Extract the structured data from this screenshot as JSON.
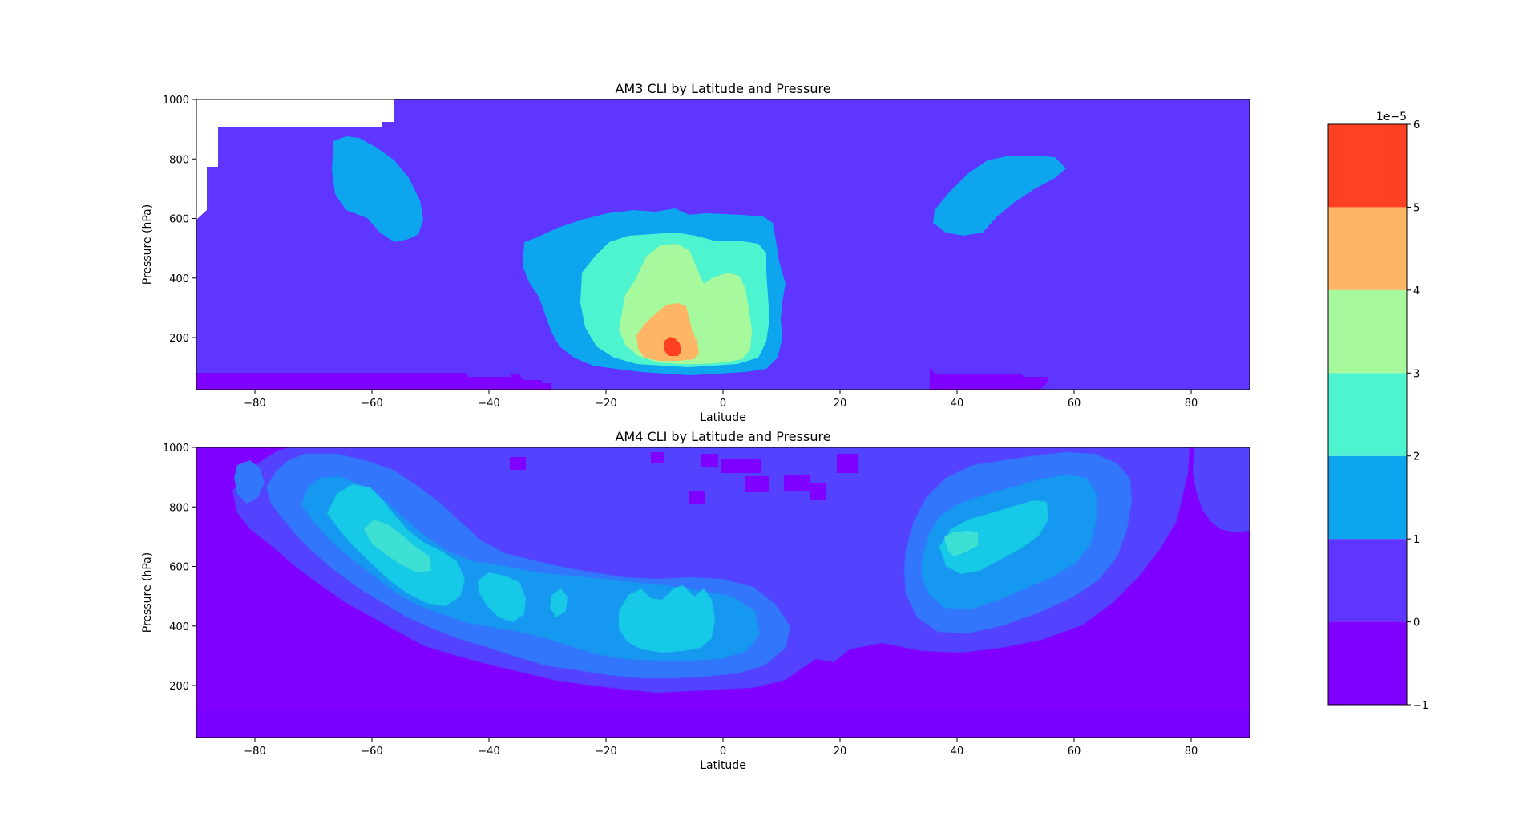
{
  "chart_data": [
    {
      "type": "heatmap",
      "subtype": "filled-contour",
      "title": "AM3 CLI by Latitude and Pressure",
      "xlabel": "Latitude",
      "ylabel": "Pressure (hPa)",
      "xlim": [
        -90,
        90
      ],
      "ylim": [
        25,
        1000
      ],
      "xticks": [
        -80,
        -60,
        -40,
        -20,
        0,
        20,
        40,
        60,
        80
      ],
      "xtick_labels": [
        "−80",
        "−60",
        "−40",
        "−20",
        "0",
        "20",
        "40",
        "60",
        "80"
      ],
      "yticks": [
        200,
        400,
        600,
        800,
        1000
      ],
      "ytick_labels": [
        "200",
        "400",
        "600",
        "800",
        "1000"
      ],
      "background_level": 0,
      "features": [
        {
          "desc": "low-cli band near top of atmosphere (south)",
          "level": -1,
          "lat": [
            -90,
            -30
          ],
          "p": [
            25,
            80
          ]
        },
        {
          "desc": "low-cli band near top of atmosphere (north)",
          "level": -1,
          "lat": [
            37,
            57
          ],
          "p": [
            25,
            80
          ]
        },
        {
          "desc": "southern mid-latitude maximum",
          "level": 1,
          "lat_center": -57,
          "p_center": 730
        },
        {
          "desc": "northern mid-latitude maximum",
          "level": 1,
          "lat_center": 47,
          "p_center": 690
        },
        {
          "desc": "tropical maximum",
          "level": 1,
          "lat": [
            -34,
            11
          ],
          "p": [
            80,
            620
          ]
        },
        {
          "desc": "tropical core",
          "level": 2,
          "lat": [
            -24,
            9
          ],
          "p": [
            90,
            500
          ]
        },
        {
          "desc": "tropical core",
          "level": 3,
          "lat": [
            -18,
            4
          ],
          "p": [
            110,
            480
          ]
        },
        {
          "desc": "tropical core",
          "level": 4,
          "lat": [
            -15,
            -4
          ],
          "p": [
            120,
            300
          ]
        },
        {
          "desc": "tropical peak",
          "level": 5,
          "lat_center": -8.5,
          "p_center": 170
        }
      ],
      "missing_region": {
        "desc": "no data (surface, southern high latitudes)",
        "lat": [
          -90,
          -56
        ],
        "p": [
          600,
          1000
        ]
      }
    },
    {
      "type": "heatmap",
      "subtype": "filled-contour",
      "title": "AM4 CLI by Latitude and Pressure",
      "xlabel": "Latitude",
      "ylabel": "Pressure (hPa)",
      "xlim": [
        -90,
        90
      ],
      "ylim": [
        25,
        1000
      ],
      "xticks": [
        -80,
        -60,
        -40,
        -20,
        0,
        20,
        40,
        60,
        80
      ],
      "xtick_labels": [
        "−80",
        "−60",
        "−40",
        "−20",
        "0",
        "20",
        "40",
        "60",
        "80"
      ],
      "yticks": [
        200,
        400,
        600,
        800,
        1000
      ],
      "ytick_labels": [
        "200",
        "400",
        "600",
        "800",
        "1000"
      ],
      "background_level": -1,
      "features": [
        {
          "desc": "broad cloud-ice arc",
          "level": 0,
          "lat": [
            -84,
            80
          ],
          "p": [
            180,
            1000
          ]
        },
        {
          "desc": "southern mid-latitude band",
          "level": 0.5,
          "lat": [
            -72,
            12
          ],
          "p": [
            240,
            960
          ]
        },
        {
          "desc": "southern mid-latitude band",
          "level": 1,
          "lat": [
            -66,
            6
          ],
          "p": [
            300,
            920
          ]
        },
        {
          "desc": "southern mid-latitude core",
          "level": 1.5,
          "lat": [
            -61,
            -44
          ],
          "p": [
            520,
            820
          ]
        },
        {
          "desc": "southern mid-latitude peak",
          "level": 2,
          "lat_center": -54,
          "p_center": 680
        },
        {
          "desc": "subtropical core",
          "level": 1.5,
          "lat": [
            -41,
            -33
          ],
          "p": [
            400,
            530
          ]
        },
        {
          "desc": "tropical core",
          "level": 1.5,
          "lat": [
            -17,
            -1
          ],
          "p": [
            330,
            480
          ]
        },
        {
          "desc": "northern mid-latitude band",
          "level": 1,
          "lat": [
            30,
            68
          ],
          "p": [
            400,
            900
          ]
        },
        {
          "desc": "northern mid-latitude core",
          "level": 1.5,
          "lat": [
            37,
            56
          ],
          "p": [
            510,
            790
          ]
        },
        {
          "desc": "northern mid-latitude peak",
          "level": 2,
          "lat_center": 40.5,
          "p_center": 660
        }
      ]
    }
  ],
  "colorbar": {
    "offset_text": "1e−5",
    "levels": [
      -1,
      0,
      1,
      2,
      3,
      4,
      5,
      6
    ],
    "tick_labels": [
      "−1",
      "0",
      "1",
      "2",
      "3",
      "4",
      "5",
      "6"
    ],
    "colors": [
      "#8000ff",
      "#5e36ff",
      "#0da5ee",
      "#4ef4cf",
      "#a6f99c",
      "#feb566",
      "#ff4122"
    ]
  },
  "palette_intermediate": {
    "am4_level_0": "#5343ff",
    "am4_level_0_5": "#3077fb",
    "am4_level_1": "#1497f0",
    "am4_level_1_5": "#17c9e6",
    "am4_level_2": "#3de0d3"
  }
}
